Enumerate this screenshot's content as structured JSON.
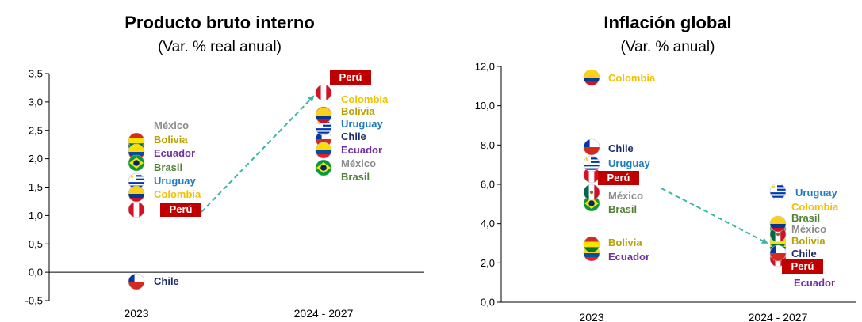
{
  "colors": {
    "arrow": "#3ab7a5",
    "peru_box": "#c00000",
    "mexico": "#8c8c8c",
    "bolivia": "#b8a000",
    "ecuador": "#7030a0",
    "brasil": "#548235",
    "uruguay": "#1f7bc0",
    "colombia": "#f2c200",
    "chile": "#1f2d6b",
    "peru": "#c00000"
  },
  "chart_data": [
    {
      "type": "scatter",
      "title": "Producto bruto interno",
      "subtitle": "(Var. % real anual)",
      "xlabel": "",
      "ylabel": "",
      "categories": [
        "2023",
        "2024 - 2027"
      ],
      "ylim": [
        -0.5,
        3.5
      ],
      "yticks": [
        "-0,5",
        "0,0",
        "0,5",
        "1,0",
        "1,5",
        "2,0",
        "2,5",
        "3,0",
        "3,5"
      ],
      "grid": false,
      "series": [
        {
          "name": "Perú",
          "values": [
            1.0,
            3.1
          ]
        },
        {
          "name": "Colombia",
          "values": [
            1.35,
            2.95
          ]
        },
        {
          "name": "Uruguay",
          "values": [
            1.55,
            2.6
          ]
        },
        {
          "name": "Brasil",
          "values": [
            1.95,
            1.85
          ]
        },
        {
          "name": "Ecuador",
          "values": [
            2.1,
            2.15
          ]
        },
        {
          "name": "Bolivia",
          "values": [
            2.2,
            2.75
          ]
        },
        {
          "name": "México",
          "values": [
            2.1,
            2.15
          ]
        },
        {
          "name": "Chile",
          "values": [
            -0.2,
            2.45
          ]
        }
      ]
    },
    {
      "type": "scatter",
      "title": "Inflación global",
      "subtitle": "(Var. % anual)",
      "xlabel": "",
      "ylabel": "",
      "categories": [
        "2023",
        "2024 - 2027"
      ],
      "ylim": [
        0,
        12
      ],
      "yticks": [
        "0,0",
        "2,0",
        "4,0",
        "6,0",
        "8,0",
        "10,0",
        "12,0"
      ],
      "grid": false,
      "series": [
        {
          "name": "Colombia",
          "values": [
            11.4,
            3.8
          ]
        },
        {
          "name": "Chile",
          "values": [
            7.8,
            2.6
          ]
        },
        {
          "name": "Uruguay",
          "values": [
            7.0,
            5.4
          ]
        },
        {
          "name": "Perú",
          "values": [
            6.5,
            2.3
          ]
        },
        {
          "name": "México",
          "values": [
            5.6,
            3.5
          ]
        },
        {
          "name": "Brasil",
          "values": [
            5.1,
            3.7
          ]
        },
        {
          "name": "Bolivia",
          "values": [
            2.9,
            3.2
          ]
        },
        {
          "name": "Ecuador",
          "values": [
            2.5,
            3.4
          ]
        }
      ]
    }
  ]
}
